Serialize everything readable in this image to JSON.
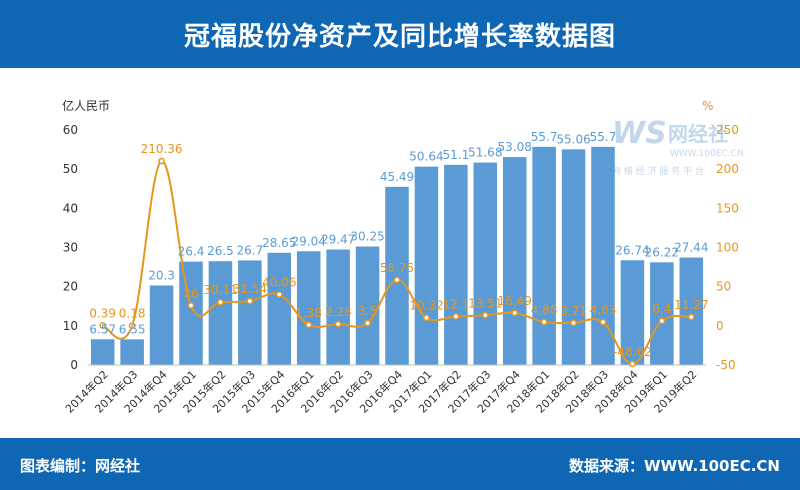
{
  "header": {
    "title": "冠福股份净资产及同比增长率数据图"
  },
  "footer": {
    "left_text": "图表编制：网经社",
    "right_text": "数据来源：WWW.100EC.CN"
  },
  "watermark": {
    "logo_text": "WS",
    "brand_text": "网经社",
    "url_text": "WWW.100EC.CN",
    "tagline": "网 络 经 济 服 务 平 台"
  },
  "colors": {
    "header_bg": "#0f67b3",
    "bar": "#5b9bd5",
    "line": "#e6961e",
    "bar_label": "#5b9bd5",
    "line_label": "#e6961e"
  },
  "chart_data": {
    "type": "bar",
    "categories": [
      "2014年Q2",
      "2014年Q3",
      "2014年Q4",
      "2015年Q1",
      "2015年Q2",
      "2015年Q3",
      "2015年Q4",
      "2016年Q1",
      "2016年Q2",
      "2016年Q3",
      "2016年Q4",
      "2017年Q1",
      "2017年Q2",
      "2017年Q3",
      "2017年Q4",
      "2018年Q1",
      "2018年Q2",
      "2018年Q3",
      "2018年Q4",
      "2019年Q1",
      "2019年Q2"
    ],
    "ylabel_left": "亿人民币",
    "ylabel_right": "%",
    "ylim_left": [
      0,
      60
    ],
    "yticks_left": [
      0,
      10,
      20,
      30,
      40,
      50,
      60
    ],
    "ylim_right": [
      -50,
      250
    ],
    "yticks_right": [
      -50,
      0,
      50,
      100,
      150,
      200,
      250
    ],
    "legend": "none",
    "grid": false,
    "series": [
      {
        "type": "bar",
        "axis": "left",
        "values": [
          6.57,
          6.55,
          20.3,
          26.4,
          26.5,
          26.7,
          28.65,
          29.04,
          29.47,
          30.25,
          45.49,
          50.64,
          51.1,
          51.68,
          53.08,
          55.7,
          55.06,
          55.7,
          26.74,
          26.22,
          27.44
        ],
        "value_labels": [
          "6.57",
          "6.55",
          "20.3",
          "26.4",
          "26.5",
          "26.7",
          "28.65",
          "29.04",
          "29.47",
          "30.25",
          "45.49",
          "50.64",
          "51.1",
          "51.68",
          "53.08",
          "55.7",
          "55.06",
          "55.7",
          "26.74",
          "26.22",
          "27.44"
        ]
      },
      {
        "type": "line",
        "axis": "right",
        "values": [
          0.39,
          0.18,
          210.36,
          26,
          30.11,
          31.54,
          40.06,
          1.38,
          2.28,
          3.5,
          58.75,
          10.32,
          12.1,
          13.51,
          16.49,
          4.88,
          3.71,
          4.83,
          -48.62,
          6.4,
          11.27
        ],
        "value_labels": [
          "0.39",
          "0.18",
          "210.36",
          "26",
          "30.11",
          "31.54",
          "40.06",
          "1.38",
          "2.28",
          "3.5",
          "58.75",
          "10.32",
          "12.1",
          "13.51",
          "16.49",
          "4.88",
          "3.71",
          "4.83",
          "-48.62",
          "6.4",
          "11.27"
        ]
      }
    ]
  }
}
